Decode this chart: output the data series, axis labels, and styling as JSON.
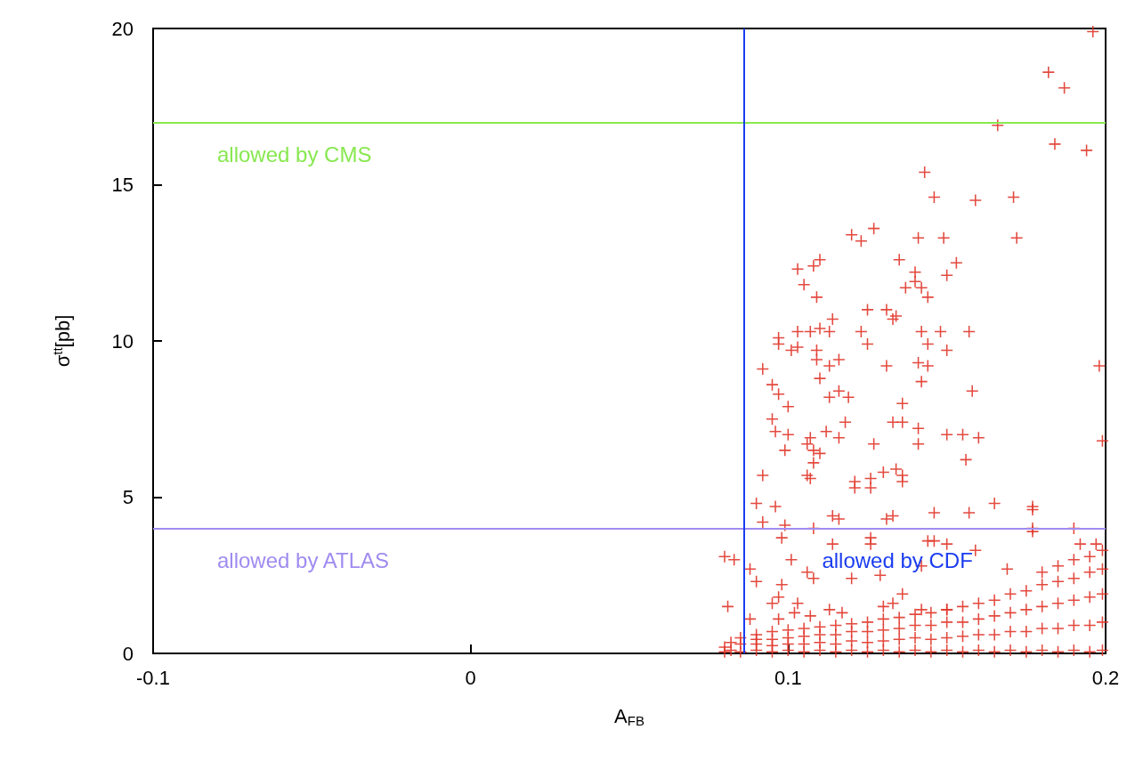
{
  "chart_data": {
    "type": "scatter",
    "xlabel": "A$_{FB}$",
    "ylabel": "σ$^{tt}$[pb]",
    "xlim": [
      -0.1,
      0.2
    ],
    "xticks": [
      -0.1,
      0,
      0.1,
      0.2
    ],
    "ylim": [
      0,
      20
    ],
    "yticks": [
      0,
      5,
      10,
      15,
      20
    ],
    "grid": false,
    "marker": "cross",
    "ref_lines": [
      {
        "axis": "y",
        "value": 17,
        "label": "allowed by CMS",
        "color": "#88e850",
        "line_style": "solid"
      },
      {
        "axis": "y",
        "value": 4,
        "label": "allowed by ATLAS",
        "color": "#a08cf0",
        "line_style": "solid"
      },
      {
        "axis": "x",
        "value": 0.086,
        "label": "allowed by CDF",
        "color": "#1a3cf0",
        "line_style": "solid"
      }
    ],
    "series": [
      {
        "color": "#e0362a",
        "x": [
          0.196,
          0.182,
          0.187,
          0.166,
          0.184,
          0.194,
          0.143,
          0.146,
          0.159,
          0.171,
          0.12,
          0.123,
          0.127,
          0.141,
          0.149,
          0.172,
          0.103,
          0.108,
          0.11,
          0.105,
          0.109,
          0.135,
          0.14,
          0.14,
          0.142,
          0.137,
          0.144,
          0.153,
          0.15,
          0.125,
          0.131,
          0.134,
          0.133,
          0.114,
          0.097,
          0.103,
          0.107,
          0.11,
          0.113,
          0.123,
          0.142,
          0.148,
          0.157,
          0.097,
          0.101,
          0.103,
          0.109,
          0.125,
          0.144,
          0.15,
          0.198,
          0.092,
          0.109,
          0.113,
          0.116,
          0.131,
          0.141,
          0.144,
          0.11,
          0.142,
          0.095,
          0.097,
          0.113,
          0.116,
          0.119,
          0.158,
          0.136,
          0.1,
          0.095,
          0.096,
          0.1,
          0.099,
          0.118,
          0.112,
          0.116,
          0.107,
          0.106,
          0.108,
          0.11,
          0.108,
          0.133,
          0.136,
          0.141,
          0.141,
          0.127,
          0.15,
          0.155,
          0.16,
          0.199,
          0.156,
          0.092,
          0.106,
          0.107,
          0.121,
          0.121,
          0.126,
          0.126,
          0.13,
          0.134,
          0.136,
          0.136,
          0.09,
          0.096,
          0.114,
          0.116,
          0.131,
          0.133,
          0.146,
          0.157,
          0.165,
          0.177,
          0.177,
          0.092,
          0.099,
          0.108,
          0.177,
          0.177,
          0.19,
          0.08,
          0.083,
          0.098,
          0.126,
          0.126,
          0.144,
          0.146,
          0.114,
          0.15,
          0.159,
          0.192,
          0.197,
          0.088,
          0.09,
          0.101,
          0.106,
          0.108,
          0.12,
          0.129,
          0.142,
          0.169,
          0.098,
          0.097,
          0.095,
          0.103,
          0.136,
          0.133,
          0.13,
          0.081,
          0.088,
          0.102,
          0.107,
          0.113,
          0.117,
          0.097,
          0.15,
          0.142,
          0.08,
          0.08,
          0.082,
          0.082,
          0.085,
          0.085,
          0.085,
          0.09,
          0.09,
          0.09,
          0.09,
          0.095,
          0.095,
          0.095,
          0.095,
          0.1,
          0.1,
          0.1,
          0.1,
          0.105,
          0.105,
          0.105,
          0.105,
          0.11,
          0.11,
          0.11,
          0.11,
          0.115,
          0.115,
          0.115,
          0.115,
          0.12,
          0.12,
          0.12,
          0.12,
          0.125,
          0.125,
          0.125,
          0.125,
          0.13,
          0.13,
          0.13,
          0.13,
          0.135,
          0.135,
          0.135,
          0.135,
          0.14,
          0.14,
          0.14,
          0.14,
          0.145,
          0.145,
          0.145,
          0.145,
          0.15,
          0.15,
          0.15,
          0.15,
          0.155,
          0.155,
          0.155,
          0.155,
          0.16,
          0.16,
          0.16,
          0.16,
          0.165,
          0.165,
          0.165,
          0.165,
          0.17,
          0.17,
          0.17,
          0.17,
          0.175,
          0.175,
          0.175,
          0.175,
          0.18,
          0.18,
          0.18,
          0.18,
          0.18,
          0.185,
          0.185,
          0.185,
          0.185,
          0.185,
          0.19,
          0.19,
          0.19,
          0.19,
          0.19,
          0.195,
          0.195,
          0.195,
          0.195,
          0.195,
          0.199,
          0.199,
          0.199,
          0.199,
          0.199
        ],
        "values": [
          19.9,
          18.6,
          18.1,
          16.9,
          16.3,
          16.1,
          15.4,
          14.6,
          14.5,
          14.6,
          13.4,
          13.2,
          13.6,
          13.3,
          13.3,
          13.3,
          12.3,
          12.4,
          12.6,
          11.8,
          11.4,
          12.6,
          12.2,
          11.9,
          11.7,
          11.7,
          11.4,
          12.5,
          12.1,
          11.0,
          11.0,
          10.8,
          10.7,
          10.7,
          10.1,
          10.3,
          10.3,
          10.4,
          10.3,
          10.3,
          10.3,
          10.3,
          10.3,
          9.9,
          9.7,
          9.8,
          9.7,
          9.9,
          9.9,
          9.7,
          9.2,
          9.1,
          9.4,
          9.2,
          9.4,
          9.2,
          9.3,
          9.2,
          8.8,
          8.7,
          8.6,
          8.3,
          8.2,
          8.4,
          8.2,
          8.4,
          8.0,
          7.9,
          7.5,
          7.1,
          7.0,
          6.5,
          7.4,
          7.1,
          6.9,
          6.9,
          6.7,
          6.5,
          6.4,
          6.1,
          7.4,
          7.4,
          7.2,
          6.7,
          6.7,
          7.0,
          7.0,
          6.9,
          6.8,
          6.2,
          5.7,
          5.7,
          5.6,
          5.5,
          5.3,
          5.6,
          5.3,
          5.8,
          5.9,
          5.7,
          5.5,
          4.8,
          4.7,
          4.4,
          4.3,
          4.3,
          4.4,
          4.5,
          4.5,
          4.8,
          4.7,
          4.6,
          4.2,
          4.1,
          4.0,
          4.0,
          3.9,
          4.0,
          3.1,
          3.0,
          3.7,
          3.7,
          3.5,
          3.6,
          3.6,
          3.5,
          3.5,
          3.3,
          3.5,
          3.5,
          2.7,
          2.3,
          3.0,
          2.6,
          2.4,
          2.4,
          2.5,
          2.8,
          2.7,
          2.2,
          1.8,
          1.6,
          1.6,
          1.9,
          1.6,
          1.5,
          1.5,
          1.1,
          1.3,
          1.2,
          1.4,
          1.3,
          1.1,
          1.4,
          1.4,
          0.05,
          0.2,
          0.1,
          0.35,
          0.05,
          0.3,
          0.5,
          0.1,
          0.3,
          0.45,
          0.6,
          0.05,
          0.25,
          0.45,
          0.7,
          0.1,
          0.3,
          0.5,
          0.75,
          0.05,
          0.3,
          0.55,
          0.8,
          0.1,
          0.35,
          0.6,
          0.85,
          0.05,
          0.3,
          0.6,
          0.9,
          0.1,
          0.4,
          0.7,
          0.95,
          0.05,
          0.35,
          0.7,
          1.0,
          0.1,
          0.4,
          0.75,
          1.1,
          0.05,
          0.45,
          0.8,
          1.15,
          0.1,
          0.5,
          0.9,
          1.25,
          0.05,
          0.45,
          0.9,
          1.3,
          0.1,
          0.5,
          1.0,
          1.4,
          0.05,
          0.55,
          1.0,
          1.5,
          0.1,
          0.6,
          1.1,
          1.6,
          0.05,
          0.6,
          1.2,
          1.7,
          0.1,
          0.7,
          1.3,
          1.9,
          0.05,
          0.7,
          1.4,
          2.0,
          0.1,
          0.8,
          1.5,
          2.2,
          2.6,
          0.05,
          0.8,
          1.6,
          2.3,
          2.8,
          0.1,
          0.9,
          1.7,
          2.4,
          3.0,
          0.05,
          0.9,
          1.8,
          2.6,
          3.1,
          0.1,
          1.0,
          1.9,
          2.7,
          3.3
        ]
      }
    ]
  }
}
